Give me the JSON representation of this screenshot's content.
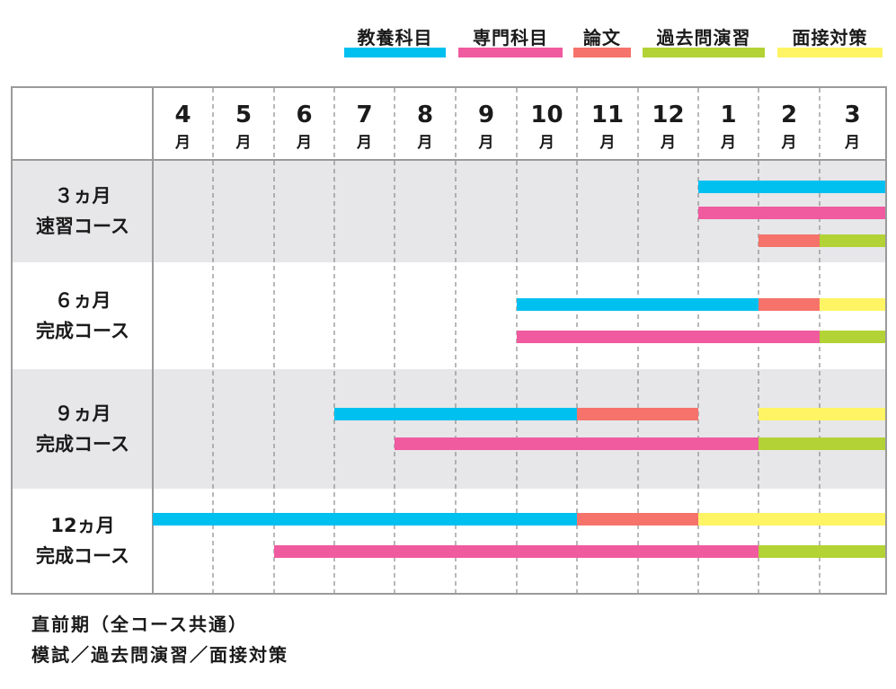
{
  "legend": [
    {
      "key": "kyoyo",
      "label": "教養科目",
      "color": "#00c0f0"
    },
    {
      "key": "senmon",
      "label": "専門科目",
      "color": "#f05a9f"
    },
    {
      "key": "ronbun",
      "label": "論文",
      "color": "#f5736a"
    },
    {
      "key": "kako",
      "label": "過去問演習",
      "color": "#b2d235"
    },
    {
      "key": "mensetsu",
      "label": "面接対策",
      "color": "#fff464"
    }
  ],
  "footnote": {
    "line1": "直前期（全コース共通）",
    "line2": "模試／過去問演習／面接対策"
  },
  "chart_data": {
    "type": "gantt",
    "months": [
      {
        "num": "4",
        "unit": "月"
      },
      {
        "num": "5",
        "unit": "月"
      },
      {
        "num": "6",
        "unit": "月"
      },
      {
        "num": "7",
        "unit": "月"
      },
      {
        "num": "8",
        "unit": "月"
      },
      {
        "num": "9",
        "unit": "月"
      },
      {
        "num": "10",
        "unit": "月"
      },
      {
        "num": "11",
        "unit": "月"
      },
      {
        "num": "12",
        "unit": "月"
      },
      {
        "num": "1",
        "unit": "月"
      },
      {
        "num": "2",
        "unit": "月"
      },
      {
        "num": "3",
        "unit": "月"
      }
    ],
    "courses": [
      {
        "label_line1": "３ヵ月",
        "label_line2": "速習コース",
        "shaded": true,
        "bars": [
          [
            {
              "start": "1月",
              "end": "3月",
              "category": "教養科目"
            }
          ],
          [
            {
              "start": "1月",
              "end": "3月",
              "category": "専門科目"
            }
          ],
          [
            {
              "start": "2月",
              "end": "2月",
              "category": "論文"
            },
            {
              "start": "3月",
              "end": "3月",
              "category": "過去問演習"
            }
          ]
        ]
      },
      {
        "label_line1": "６ヵ月",
        "label_line2": "完成コース",
        "shaded": false,
        "bars": [
          [
            {
              "start": "10月",
              "end": "1月",
              "category": "教養科目"
            },
            {
              "start": "2月",
              "end": "2月",
              "category": "論文"
            },
            {
              "start": "3月",
              "end": "3月",
              "category": "面接対策"
            }
          ],
          [
            {
              "start": "10月",
              "end": "2月",
              "category": "専門科目"
            },
            {
              "start": "3月",
              "end": "3月",
              "category": "過去問演習"
            }
          ]
        ]
      },
      {
        "label_line1": "９ヵ月",
        "label_line2": "完成コース",
        "shaded": true,
        "bars": [
          [
            {
              "start": "7月",
              "end": "10月",
              "category": "教養科目"
            },
            {
              "start": "11月",
              "end": "12月",
              "category": "論文"
            },
            {
              "start": "2月",
              "end": "3月",
              "category": "面接対策"
            }
          ],
          [
            {
              "start": "8月",
              "end": "1月",
              "category": "専門科目"
            },
            {
              "start": "2月",
              "end": "3月",
              "category": "過去問演習"
            }
          ]
        ]
      },
      {
        "label_line1": "12ヵ月",
        "label_line2": "完成コース",
        "shaded": false,
        "bars": [
          [
            {
              "start": "4月",
              "end": "10月",
              "category": "教養科目"
            },
            {
              "start": "11月",
              "end": "12月",
              "category": "論文"
            },
            {
              "start": "1月",
              "end": "3月",
              "category": "面接対策"
            }
          ],
          [
            {
              "start": "6月",
              "end": "1月",
              "category": "専門科目"
            },
            {
              "start": "2月",
              "end": "3月",
              "category": "過去問演習"
            }
          ]
        ]
      }
    ]
  }
}
